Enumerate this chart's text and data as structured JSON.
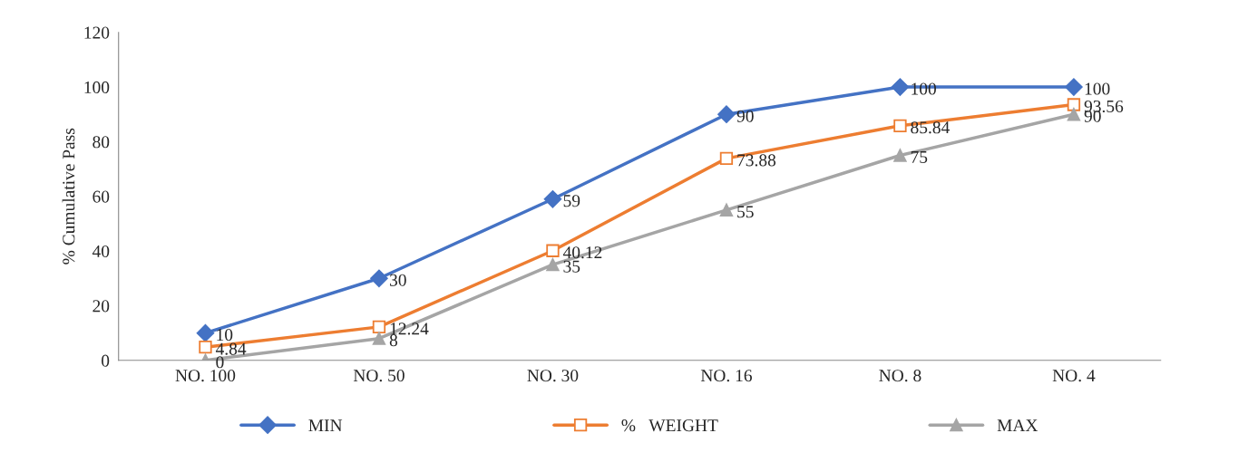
{
  "chart_data": {
    "type": "line",
    "ylabel": "% Cumulative Pass",
    "categories": [
      "NO. 100",
      "NO. 50",
      "NO. 30",
      "NO. 16",
      "NO. 8",
      "NO. 4"
    ],
    "series": [
      {
        "name": "MIN",
        "color": "#4472c4",
        "marker": "diamond",
        "values": [
          10,
          30,
          59,
          90,
          100,
          100
        ]
      },
      {
        "name": "%   WEIGHT",
        "color": "#ed7d31",
        "marker": "square",
        "values": [
          4.84,
          12.24,
          40.12,
          73.88,
          85.84,
          93.56
        ]
      },
      {
        "name": "MAX",
        "color": "#a5a5a5",
        "marker": "triangle",
        "values": [
          0,
          8,
          35,
          55,
          75,
          90
        ]
      }
    ],
    "ylim": [
      0,
      120
    ],
    "yticks": [
      0,
      20,
      40,
      60,
      80,
      100,
      120
    ],
    "grid": false,
    "legend": "bottom",
    "data_labels": true,
    "line_style": "solid"
  }
}
